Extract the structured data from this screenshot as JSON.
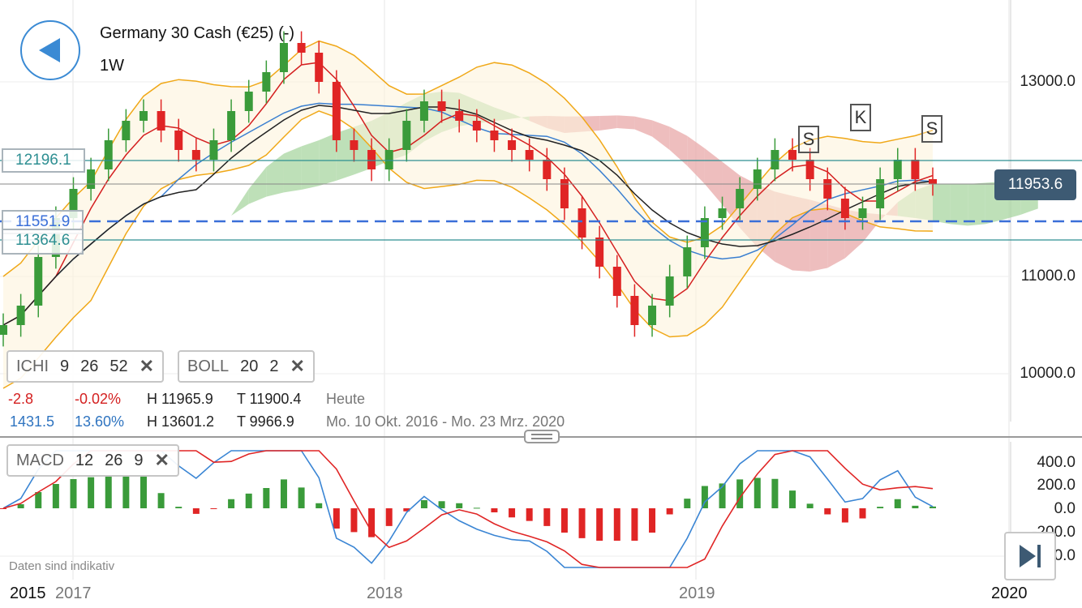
{
  "header": {
    "instrument": "Germany 30 Cash (€25) (-)",
    "interval": "1W"
  },
  "y_axis": {
    "labels": [
      "13000.0",
      "11000.0",
      "10000.0"
    ]
  },
  "horizontal_lines": [
    {
      "label": "12196.1",
      "color": "#2e8f92"
    },
    {
      "label": "11551.9",
      "color": "#3a6fd8"
    },
    {
      "label": "11364.6",
      "color": "#2e8f92"
    }
  ],
  "current_price": {
    "label": "11953.6",
    "color": "#3d5a73"
  },
  "indicators": [
    {
      "name": "ICHI",
      "params": [
        "9",
        "26",
        "52"
      ]
    },
    {
      "name": "BOLL",
      "params": [
        "20",
        "2"
      ]
    }
  ],
  "close_glyph": "✕",
  "stats": {
    "row1": {
      "change": "-2.8",
      "change_pct": "-0.02%",
      "high": "H 11965.9",
      "low": "T 11900.4",
      "period": "Heute"
    },
    "row2": {
      "change": "1431.5",
      "change_pct": "13.60%",
      "high": "H 13601.2",
      "low": "T 9966.9",
      "period": "Mo. 10 Okt. 2016 - Mo. 23 Mrz. 2020"
    }
  },
  "markers": [
    "S",
    "K",
    "S"
  ],
  "macd": {
    "name": "MACD",
    "params": [
      "12",
      "26",
      "9"
    ],
    "axis_labels": [
      "400.0",
      "200.0",
      "0.0",
      "-200.0",
      "-400.0"
    ]
  },
  "x_axis": {
    "labels": [
      "2015",
      "2017",
      "2018",
      "2019",
      "2020"
    ]
  },
  "disclaimer": "Daten sind indikativ",
  "colors": {
    "up": "#3a9b3a",
    "down": "#e02525",
    "tenkan": "#d42020",
    "kijun": "#3a7fd0",
    "sma": "#222222",
    "bollinger": "#f0a818",
    "kumo_up": "#a8d5a0",
    "kumo_down": "#e8a8a8",
    "macd_line": "#3a85d4",
    "signal_line": "#e02525",
    "accent": "#3a8ad4"
  },
  "chart_data": {
    "type": "candlestick",
    "series_names": [
      "Germany 30 Cash (€25) (-)"
    ],
    "y_range": [
      9400,
      13800
    ],
    "x_range_dates": [
      "2016-10-10",
      "2020-03-23"
    ],
    "weekly_closes_approx": [
      10500,
      10700,
      11200,
      11600,
      11900,
      12100,
      12400,
      12600,
      12700,
      12500,
      12300,
      12200,
      12400,
      12700,
      12900,
      13100,
      13400,
      13300,
      13000,
      12400,
      12300,
      12100,
      12300,
      12600,
      12800,
      12700,
      12600,
      12500,
      12400,
      12300,
      12200,
      12000,
      11700,
      11400,
      11100,
      10800,
      10500,
      10700,
      11000,
      11300,
      11600,
      11700,
      11900,
      12100,
      12300,
      12200,
      12000,
      11800,
      11600,
      11700,
      12000,
      12200,
      12000,
      11950
    ]
  }
}
